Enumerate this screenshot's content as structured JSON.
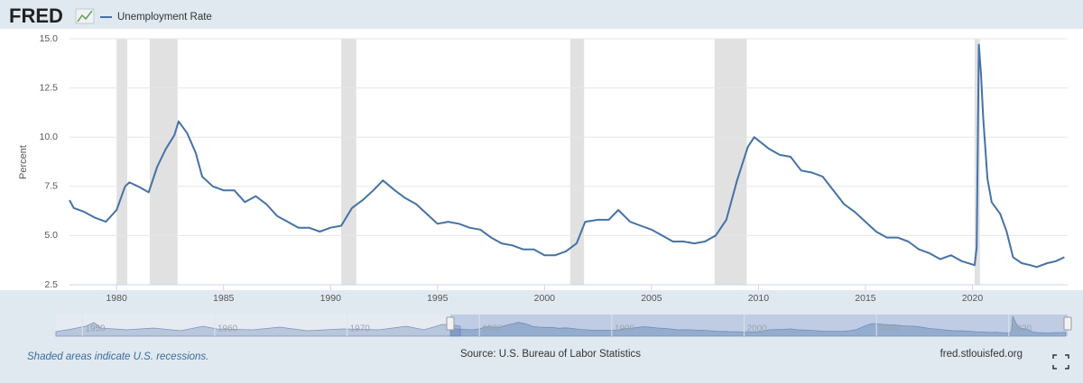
{
  "chart_data": {
    "type": "line",
    "logo": "FRED",
    "y_label": "Percent",
    "note": "Shaded areas indicate U.S. recessions.",
    "source": "Source: U.S. Bureau of Labor Statistics",
    "site": "fred.stlouisfed.org",
    "xlim": [
      1977.8,
      2024.45
    ],
    "xticks": [
      1980,
      1985,
      1990,
      1995,
      2000,
      2005,
      2010,
      2015,
      2020
    ],
    "ylim": [
      2.5,
      15
    ],
    "yticks": [
      2.5,
      {
        "value": 5,
        "label": "5.0"
      },
      7.5,
      {
        "value": 10,
        "label": "10.0"
      },
      12.5,
      {
        "value": 15,
        "label": "15.0"
      }
    ],
    "grid": true,
    "recessions": [
      [
        1980.0,
        1980.5
      ],
      [
        1981.55,
        1982.85
      ],
      [
        1990.5,
        1991.2
      ],
      [
        2001.2,
        2001.85
      ],
      [
        2007.95,
        2009.45
      ],
      [
        2020.1,
        2020.35
      ]
    ],
    "recession_color": "#e1e1e1",
    "x": [
      1977.8,
      1978.0,
      1978.5,
      1979.0,
      1979.5,
      1980.0,
      1980.4,
      1980.6,
      1981.0,
      1981.5,
      1981.9,
      1982.3,
      1982.7,
      1982.9,
      1983.3,
      1983.7,
      1984.0,
      1984.5,
      1985.0,
      1985.5,
      1986.0,
      1986.5,
      1987.0,
      1987.5,
      1988.0,
      1988.5,
      1989.0,
      1989.5,
      1990.0,
      1990.5,
      1991.0,
      1991.5,
      1992.0,
      1992.45,
      1993.0,
      1993.5,
      1994.0,
      1994.5,
      1995.0,
      1995.5,
      1996.0,
      1996.5,
      1997.0,
      1997.5,
      1998.0,
      1998.5,
      1999.0,
      1999.5,
      2000.0,
      2000.5,
      2001.0,
      2001.5,
      2001.9,
      2002.5,
      2003.0,
      2003.45,
      2004.0,
      2004.5,
      2005.0,
      2005.5,
      2006.0,
      2006.5,
      2007.0,
      2007.5,
      2008.0,
      2008.5,
      2009.0,
      2009.5,
      2009.8,
      2010.5,
      2011.0,
      2011.5,
      2012.0,
      2012.5,
      2013.0,
      2013.5,
      2014.0,
      2014.5,
      2015.0,
      2015.5,
      2016.0,
      2016.5,
      2017.0,
      2017.5,
      2018.0,
      2018.5,
      2019.0,
      2019.5,
      2020.1,
      2020.2,
      2020.3,
      2020.4,
      2020.5,
      2020.7,
      2020.9,
      2021.3,
      2021.6,
      2021.9,
      2022.3,
      2022.7,
      2023.0,
      2023.5,
      2023.9,
      2024.3
    ],
    "series": [
      {
        "name": "Unemployment Rate",
        "color": "#4572a7",
        "values": [
          6.8,
          6.4,
          6.2,
          5.9,
          5.7,
          6.3,
          7.5,
          7.7,
          7.5,
          7.2,
          8.5,
          9.4,
          10.1,
          10.8,
          10.2,
          9.2,
          8.0,
          7.5,
          7.3,
          7.3,
          6.7,
          7.0,
          6.6,
          6.0,
          5.7,
          5.4,
          5.4,
          5.2,
          5.4,
          5.5,
          6.4,
          6.8,
          7.3,
          7.8,
          7.3,
          6.9,
          6.6,
          6.1,
          5.6,
          5.7,
          5.6,
          5.4,
          5.3,
          4.9,
          4.6,
          4.5,
          4.3,
          4.3,
          4.0,
          4.0,
          4.2,
          4.6,
          5.7,
          5.8,
          5.8,
          6.3,
          5.7,
          5.5,
          5.3,
          5.0,
          4.7,
          4.7,
          4.6,
          4.7,
          5.0,
          5.8,
          7.8,
          9.5,
          10.0,
          9.4,
          9.1,
          9.0,
          8.3,
          8.2,
          8.0,
          7.3,
          6.6,
          6.2,
          5.7,
          5.2,
          4.9,
          4.9,
          4.7,
          4.3,
          4.1,
          3.8,
          4.0,
          3.7,
          3.5,
          4.4,
          14.7,
          13.2,
          11.0,
          7.9,
          6.7,
          6.1,
          5.2,
          3.9,
          3.6,
          3.5,
          3.4,
          3.6,
          3.7,
          3.9
        ]
      }
    ],
    "navigator": {
      "xlim": [
        1948,
        2024.45
      ],
      "xticks": [
        1950,
        1960,
        1970,
        1980,
        1990,
        2000,
        2010,
        2020
      ],
      "selection": [
        1977.8,
        2024.45
      ]
    }
  }
}
